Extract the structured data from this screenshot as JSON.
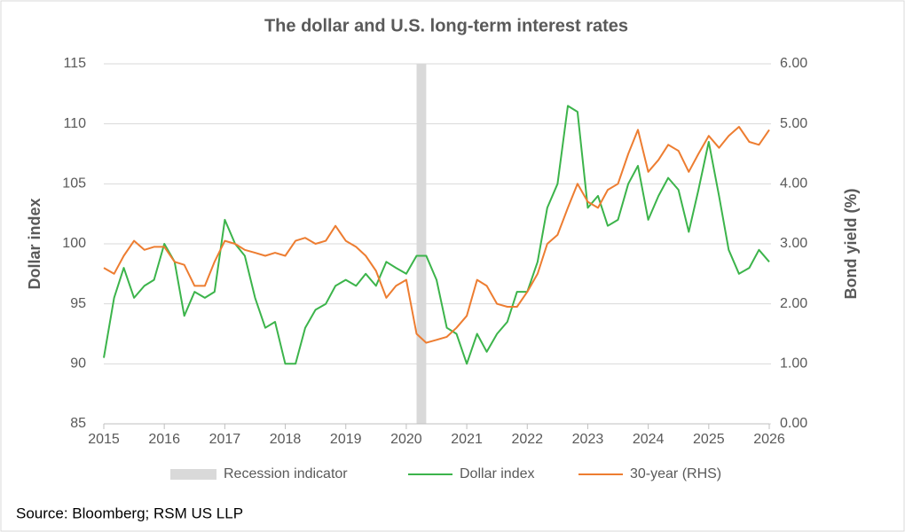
{
  "chart_data": {
    "type": "line",
    "title": "The dollar and U.S. long-term interest rates",
    "ylabel": "Dollar index",
    "y2label": "Bond yield (%)",
    "source": "Source: Bloomberg; RSM US LLP",
    "xlim": [
      2015,
      2026
    ],
    "xticks": [
      2015,
      2016,
      2017,
      2018,
      2019,
      2020,
      2021,
      2022,
      2023,
      2024,
      2025,
      2026
    ],
    "ylim": [
      85,
      115
    ],
    "yticks": [
      85,
      90,
      95,
      100,
      105,
      110,
      115
    ],
    "y2lim": [
      0,
      6
    ],
    "y2ticks": [
      {
        "value": 0,
        "label": "0.00"
      },
      {
        "value": 1,
        "label": "1.00"
      },
      {
        "value": 2,
        "label": "2.00"
      },
      {
        "value": 3,
        "label": "3.00"
      },
      {
        "value": 4,
        "label": "4.00"
      },
      {
        "value": 5,
        "label": "5.00"
      },
      {
        "value": 6,
        "label": "6.00"
      }
    ],
    "grid": true,
    "legend": "bottom",
    "recession": {
      "name": "Recession indicator",
      "color": "#d9d9d9",
      "x": [
        2020.17,
        2020.33
      ]
    },
    "x": [
      2015,
      2015.17,
      2015.33,
      2015.5,
      2015.67,
      2015.83,
      2016,
      2016.17,
      2016.33,
      2016.5,
      2016.67,
      2016.83,
      2017,
      2017.17,
      2017.33,
      2017.5,
      2017.67,
      2017.83,
      2018,
      2018.17,
      2018.33,
      2018.5,
      2018.67,
      2018.83,
      2019,
      2019.17,
      2019.33,
      2019.5,
      2019.67,
      2019.83,
      2020,
      2020.17,
      2020.33,
      2020.5,
      2020.67,
      2020.83,
      2021,
      2021.17,
      2021.33,
      2021.5,
      2021.67,
      2021.83,
      2022,
      2022.17,
      2022.33,
      2022.5,
      2022.67,
      2022.83,
      2023,
      2023.17,
      2023.33,
      2023.5,
      2023.67,
      2023.83,
      2024,
      2024.17,
      2024.33,
      2024.5,
      2024.67,
      2024.83,
      2025,
      2025.17,
      2025.33,
      2025.5,
      2025.67,
      2025.83,
      2026
    ],
    "series": [
      {
        "name": "Dollar index",
        "color": "#3cb44b",
        "values": [
          90.5,
          95.5,
          98,
          95.5,
          96.5,
          97,
          100,
          98.5,
          94,
          96,
          95.5,
          96,
          102,
          100,
          99,
          95.5,
          93,
          93.5,
          90,
          90,
          93,
          94.5,
          95,
          96.5,
          97,
          96.5,
          97.5,
          96.5,
          98.5,
          98,
          97.5,
          99,
          99,
          97,
          93,
          92.5,
          90,
          92.5,
          91,
          92.5,
          93.5,
          96,
          96,
          98.5,
          103,
          105,
          111.5,
          111,
          103,
          104,
          101.5,
          102,
          105,
          106.5,
          102,
          104,
          105.5,
          104.5,
          101,
          104.5,
          108.5,
          104,
          99.5,
          97.5,
          98,
          99.5,
          98.5
        ]
      },
      {
        "name": "30-year (RHS)",
        "color": "#ed7d31",
        "axis": "y2",
        "values": [
          2.6,
          2.5,
          2.8,
          3.05,
          2.9,
          2.95,
          2.95,
          2.7,
          2.65,
          2.3,
          2.3,
          2.7,
          3.05,
          3.0,
          2.9,
          2.85,
          2.8,
          2.85,
          2.8,
          3.05,
          3.1,
          3.0,
          3.05,
          3.3,
          3.05,
          2.95,
          2.8,
          2.55,
          2.1,
          2.3,
          2.4,
          1.5,
          1.35,
          1.4,
          1.45,
          1.6,
          1.8,
          2.4,
          2.3,
          2.0,
          1.95,
          1.95,
          2.2,
          2.5,
          3.0,
          3.15,
          3.6,
          4.0,
          3.7,
          3.6,
          3.9,
          4.0,
          4.5,
          4.9,
          4.2,
          4.4,
          4.65,
          4.55,
          4.2,
          4.5,
          4.8,
          4.6,
          4.8,
          4.95,
          4.7,
          4.65,
          4.9
        ]
      }
    ]
  }
}
